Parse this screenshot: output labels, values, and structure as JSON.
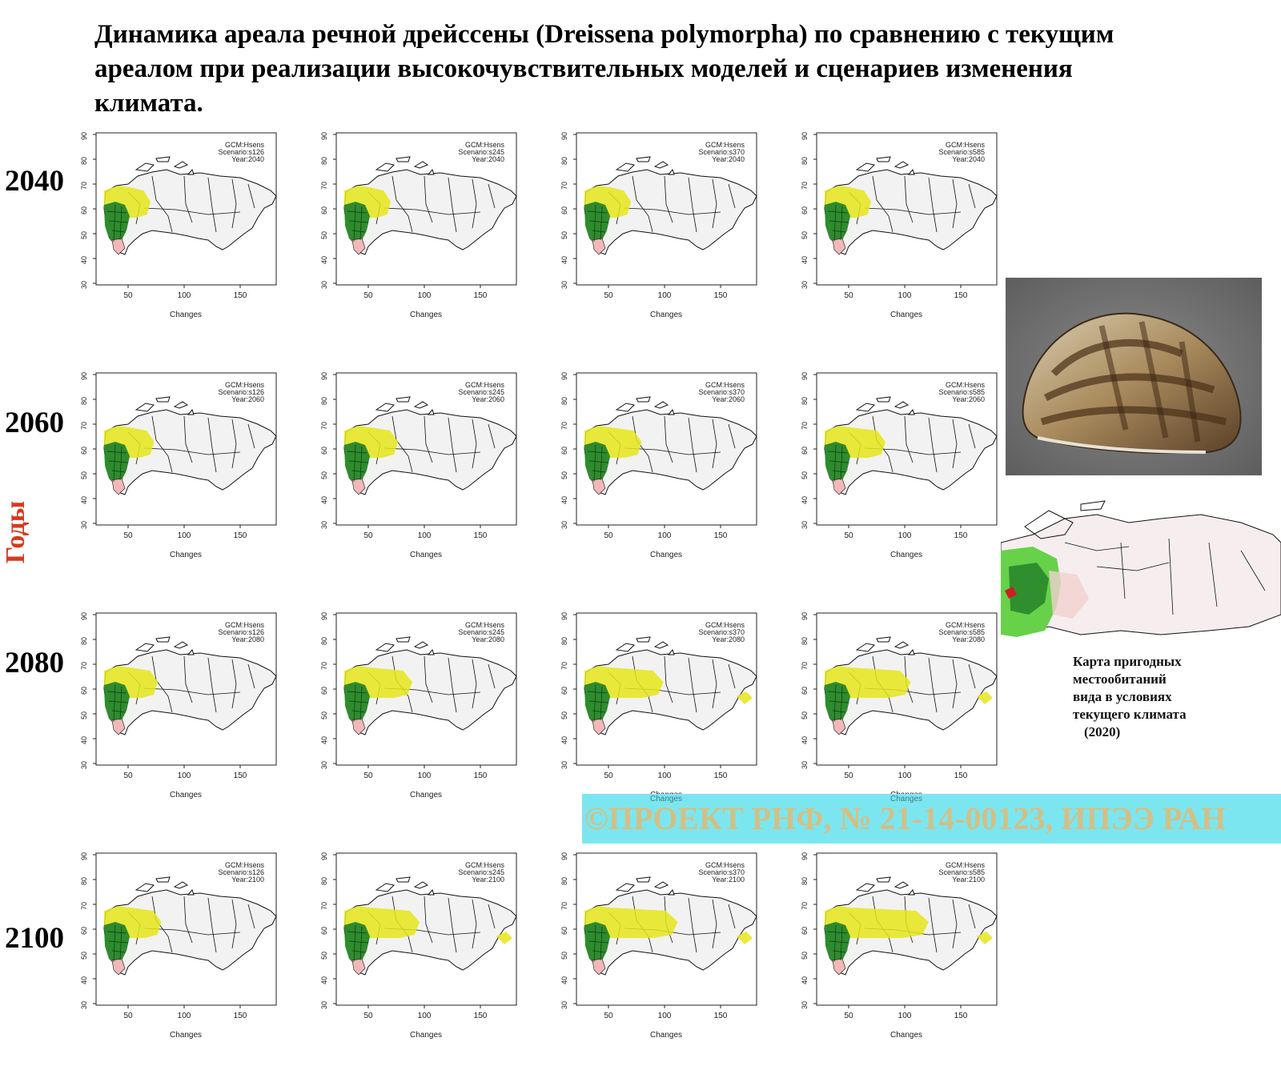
{
  "title": "Динамика ареала речной дрейссены (Dreissena polymorpha) по сравнению с текущим ареалом при реализации высокочувствительных моделей и сценариев изменения климата.",
  "axis_title": "Годы",
  "years": [
    "2040",
    "2060",
    "2080",
    "2100"
  ],
  "scenarios": [
    "s126",
    "s245",
    "s370",
    "s585"
  ],
  "map_panel": {
    "gcm_line": "GCM:Hsens",
    "scenario_prefix": "Scenario:",
    "year_prefix": "Year:",
    "x_label": "Changes",
    "x_ticks": [
      "50",
      "100",
      "150"
    ],
    "y_ticks": [
      "30",
      "40",
      "50",
      "60",
      "70",
      "80",
      "90"
    ]
  },
  "colors": {
    "retained_area": "#2e8b2e",
    "expansion_area": "#e6e61a",
    "loss_area": "#f2b8b8",
    "land": "#f2f2f2",
    "axis_title": "#d8381c",
    "copyright_band": "#7ce6f0",
    "copyright_text": "#d3bf86"
  },
  "expansion_level": {
    "2040": {
      "s126": 0.2,
      "s245": 0.2,
      "s370": 0.2,
      "s585": 0.2
    },
    "2060": {
      "s126": 0.25,
      "s245": 0.3,
      "s370": 0.35,
      "s585": 0.4
    },
    "2080": {
      "s126": 0.3,
      "s245": 0.5,
      "s370": 0.65,
      "s585": 0.75
    },
    "2100": {
      "s126": 0.35,
      "s245": 0.6,
      "s370": 0.85,
      "s585": 1.0
    }
  },
  "photo": {
    "icon": "zebra-mussel-photo"
  },
  "current_map_caption": {
    "lines": [
      "Карта пригодных",
      "местообитаний",
      "вида в условиях",
      "текущего климата"
    ],
    "year": "(2020)"
  },
  "copyright": "©ПРОЕКТ РНФ, № 21-14-00123, ИПЭЭ РАН",
  "ghost_labels": [
    "Changes",
    "Changes"
  ]
}
